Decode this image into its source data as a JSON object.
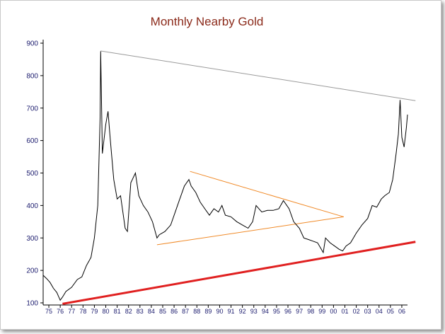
{
  "chart_data": {
    "type": "line",
    "title": "Monthly Nearby Gold",
    "xlabel": "",
    "ylabel": "",
    "x_range": [
      1975.0,
      2007.0
    ],
    "ylim": [
      100,
      900
    ],
    "y_ticks": [
      "900",
      "800",
      "700",
      "600",
      "500",
      "400",
      "300",
      "200",
      "100"
    ],
    "x_tick_labels": [
      "75",
      "76",
      "77",
      "78",
      "79",
      "80",
      "81",
      "82",
      "83",
      "84",
      "85",
      "86",
      "87",
      "88",
      "89",
      "90",
      "91",
      "92",
      "93",
      "94",
      "95",
      "96",
      "97",
      "98",
      "99",
      "00",
      "01",
      "02",
      "03",
      "04",
      "05",
      "06"
    ],
    "series": [
      {
        "values": [
          [
            1975.0,
            185
          ],
          [
            1975.3,
            175
          ],
          [
            1975.6,
            163
          ],
          [
            1975.9,
            145
          ],
          [
            1976.2,
            132
          ],
          [
            1976.5,
            108
          ],
          [
            1976.7,
            118
          ],
          [
            1977.0,
            135
          ],
          [
            1977.5,
            148
          ],
          [
            1978.0,
            172
          ],
          [
            1978.4,
            180
          ],
          [
            1978.8,
            215
          ],
          [
            1979.2,
            240
          ],
          [
            1979.5,
            300
          ],
          [
            1979.8,
            400
          ],
          [
            1980.0,
            670
          ],
          [
            1980.05,
            875
          ],
          [
            1980.2,
            560
          ],
          [
            1980.5,
            650
          ],
          [
            1980.7,
            690
          ],
          [
            1980.9,
            600
          ],
          [
            1981.2,
            480
          ],
          [
            1981.5,
            420
          ],
          [
            1981.8,
            430
          ],
          [
            1982.2,
            330
          ],
          [
            1982.4,
            320
          ],
          [
            1982.7,
            470
          ],
          [
            1983.1,
            500
          ],
          [
            1983.4,
            430
          ],
          [
            1983.8,
            400
          ],
          [
            1984.2,
            380
          ],
          [
            1984.6,
            350
          ],
          [
            1985.0,
            300
          ],
          [
            1985.2,
            310
          ],
          [
            1985.7,
            320
          ],
          [
            1986.2,
            340
          ],
          [
            1986.6,
            380
          ],
          [
            1987.0,
            420
          ],
          [
            1987.4,
            460
          ],
          [
            1987.8,
            480
          ],
          [
            1988.0,
            460
          ],
          [
            1988.4,
            440
          ],
          [
            1988.8,
            410
          ],
          [
            1989.2,
            390
          ],
          [
            1989.6,
            370
          ],
          [
            1990.0,
            390
          ],
          [
            1990.4,
            380
          ],
          [
            1990.7,
            400
          ],
          [
            1991.0,
            370
          ],
          [
            1991.5,
            365
          ],
          [
            1992.0,
            350
          ],
          [
            1992.5,
            340
          ],
          [
            1993.0,
            330
          ],
          [
            1993.4,
            350
          ],
          [
            1993.7,
            400
          ],
          [
            1994.2,
            380
          ],
          [
            1994.7,
            385
          ],
          [
            1995.2,
            385
          ],
          [
            1995.7,
            390
          ],
          [
            1996.1,
            415
          ],
          [
            1996.6,
            390
          ],
          [
            1997.0,
            350
          ],
          [
            1997.5,
            330
          ],
          [
            1997.9,
            300
          ],
          [
            1998.3,
            295
          ],
          [
            1998.7,
            290
          ],
          [
            1999.1,
            285
          ],
          [
            1999.6,
            255
          ],
          [
            1999.8,
            300
          ],
          [
            2000.2,
            285
          ],
          [
            2000.6,
            275
          ],
          [
            2001.0,
            265
          ],
          [
            2001.3,
            260
          ],
          [
            2001.6,
            275
          ],
          [
            2002.0,
            285
          ],
          [
            2002.5,
            315
          ],
          [
            2003.0,
            340
          ],
          [
            2003.5,
            360
          ],
          [
            2003.9,
            400
          ],
          [
            2004.3,
            395
          ],
          [
            2004.7,
            420
          ],
          [
            2005.0,
            430
          ],
          [
            2005.4,
            440
          ],
          [
            2005.7,
            480
          ],
          [
            2006.0,
            560
          ],
          [
            2006.2,
            620
          ],
          [
            2006.35,
            725
          ],
          [
            2006.5,
            610
          ],
          [
            2006.7,
            580
          ],
          [
            2006.9,
            640
          ],
          [
            2007.0,
            680
          ]
        ]
      }
    ],
    "annotations": [
      {
        "type": "trend-line",
        "color": "#9a9a9a",
        "from": [
          1980.05,
          876
        ],
        "to": [
          2007.7,
          723
        ]
      },
      {
        "type": "trend-line",
        "color": "#f08a28",
        "from": [
          1987.9,
          505
        ],
        "to": [
          2001.4,
          365
        ]
      },
      {
        "type": "trend-line",
        "color": "#f08a28",
        "from": [
          1985.0,
          279
        ],
        "to": [
          2001.4,
          365
        ]
      },
      {
        "type": "trend-line",
        "color": "#e02020",
        "from": [
          1976.7,
          97
        ],
        "to": [
          2007.7,
          288
        ]
      }
    ],
    "grid": false,
    "legend": "none",
    "colors": {
      "price_line": "#000000",
      "title": "#8b2a1a",
      "axis": "#000000",
      "tick_text": "#1c1c6e"
    }
  }
}
